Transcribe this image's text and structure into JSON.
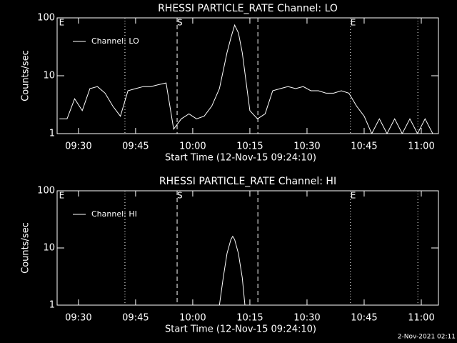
{
  "chart_data": [
    {
      "type": "line",
      "title": "RHESSI PARTICLE_RATE Channel: LO",
      "xlabel": "Start Time (12-Nov-15 09:24:10)",
      "ylabel": "Counts/sec",
      "x": [
        565,
        567,
        569,
        571,
        573,
        575,
        577,
        579,
        581,
        583,
        585,
        587,
        589,
        591,
        593,
        595,
        597,
        599,
        601,
        603,
        605,
        607,
        609,
        610,
        611,
        612,
        613,
        615,
        617,
        619,
        621,
        623,
        625,
        627,
        629,
        631,
        633,
        635,
        637,
        639,
        641,
        643,
        645,
        647,
        649,
        651,
        653,
        655,
        657,
        659,
        661,
        663
      ],
      "series": [
        {
          "name": "Channel: LO",
          "color": "#ffffff",
          "values": [
            1.8,
            1.8,
            4,
            2.5,
            6,
            6.5,
            5,
            3,
            2,
            5.5,
            6,
            6.5,
            6.5,
            7,
            7.5,
            1.2,
            1.8,
            2.2,
            1.8,
            2,
            3,
            6,
            25,
            45,
            75,
            55,
            25,
            2.5,
            1.8,
            2.2,
            5.5,
            6,
            6.5,
            6,
            6.5,
            5.5,
            5.5,
            5,
            5,
            5.5,
            5,
            3,
            2,
            1,
            1.8,
            1,
            1.8,
            1,
            1.8,
            1,
            1.8,
            1
          ]
        }
      ],
      "xlim": [
        564.4,
        664.5
      ],
      "ylim": [
        1,
        100
      ],
      "ylog": true,
      "legend": "upper left",
      "xticks": [
        {
          "value": 570,
          "label": "09:30"
        },
        {
          "value": 585,
          "label": "09:45"
        },
        {
          "value": 600,
          "label": "10:00"
        },
        {
          "value": 615,
          "label": "10:15"
        },
        {
          "value": 630,
          "label": "10:30"
        },
        {
          "value": 645,
          "label": "10:45"
        },
        {
          "value": 660,
          "label": "11:00"
        }
      ],
      "yticks": [
        1,
        10,
        100
      ],
      "vlines": [
        {
          "x": 582.2,
          "style": "dotted"
        },
        {
          "x": 595.9,
          "style": "dashed"
        },
        {
          "x": 617.1,
          "style": "dashed"
        },
        {
          "x": 641.4,
          "style": "dotted"
        },
        {
          "x": 659.1,
          "style": "dotted"
        }
      ],
      "markers": [
        {
          "x": 564.9,
          "label": "E"
        },
        {
          "x": 595.9,
          "label": "S"
        },
        {
          "x": 641.4,
          "label": "E"
        }
      ]
    },
    {
      "type": "line",
      "title": "RHESSI PARTICLE_RATE Channel: HI",
      "xlabel": "Start Time (12-Nov-15 09:24:10)",
      "ylabel": "Counts/sec",
      "x": [
        607,
        608,
        609,
        610,
        610.5,
        611,
        612,
        613,
        613.7
      ],
      "series": [
        {
          "name": "Channel: HI",
          "color": "#ffffff",
          "values": [
            1,
            3,
            8,
            14,
            16,
            14,
            8,
            3,
            1
          ]
        }
      ],
      "xlim": [
        564.4,
        664.5
      ],
      "ylim": [
        1,
        100
      ],
      "ylog": true,
      "legend": "upper left",
      "xticks": [
        {
          "value": 570,
          "label": "09:30"
        },
        {
          "value": 585,
          "label": "09:45"
        },
        {
          "value": 600,
          "label": "10:00"
        },
        {
          "value": 615,
          "label": "10:15"
        },
        {
          "value": 630,
          "label": "10:30"
        },
        {
          "value": 645,
          "label": "10:45"
        },
        {
          "value": 660,
          "label": "11:00"
        }
      ],
      "yticks": [
        1,
        10,
        100
      ],
      "vlines": [
        {
          "x": 582.2,
          "style": "dotted"
        },
        {
          "x": 595.9,
          "style": "dashed"
        },
        {
          "x": 617.1,
          "style": "dashed"
        },
        {
          "x": 641.4,
          "style": "dotted"
        },
        {
          "x": 659.1,
          "style": "dotted"
        }
      ],
      "markers": [
        {
          "x": 564.9,
          "label": "E"
        },
        {
          "x": 595.9,
          "label": "S"
        },
        {
          "x": 641.4,
          "label": "E"
        }
      ]
    }
  ],
  "footer": "2-Nov-2021 02:11"
}
